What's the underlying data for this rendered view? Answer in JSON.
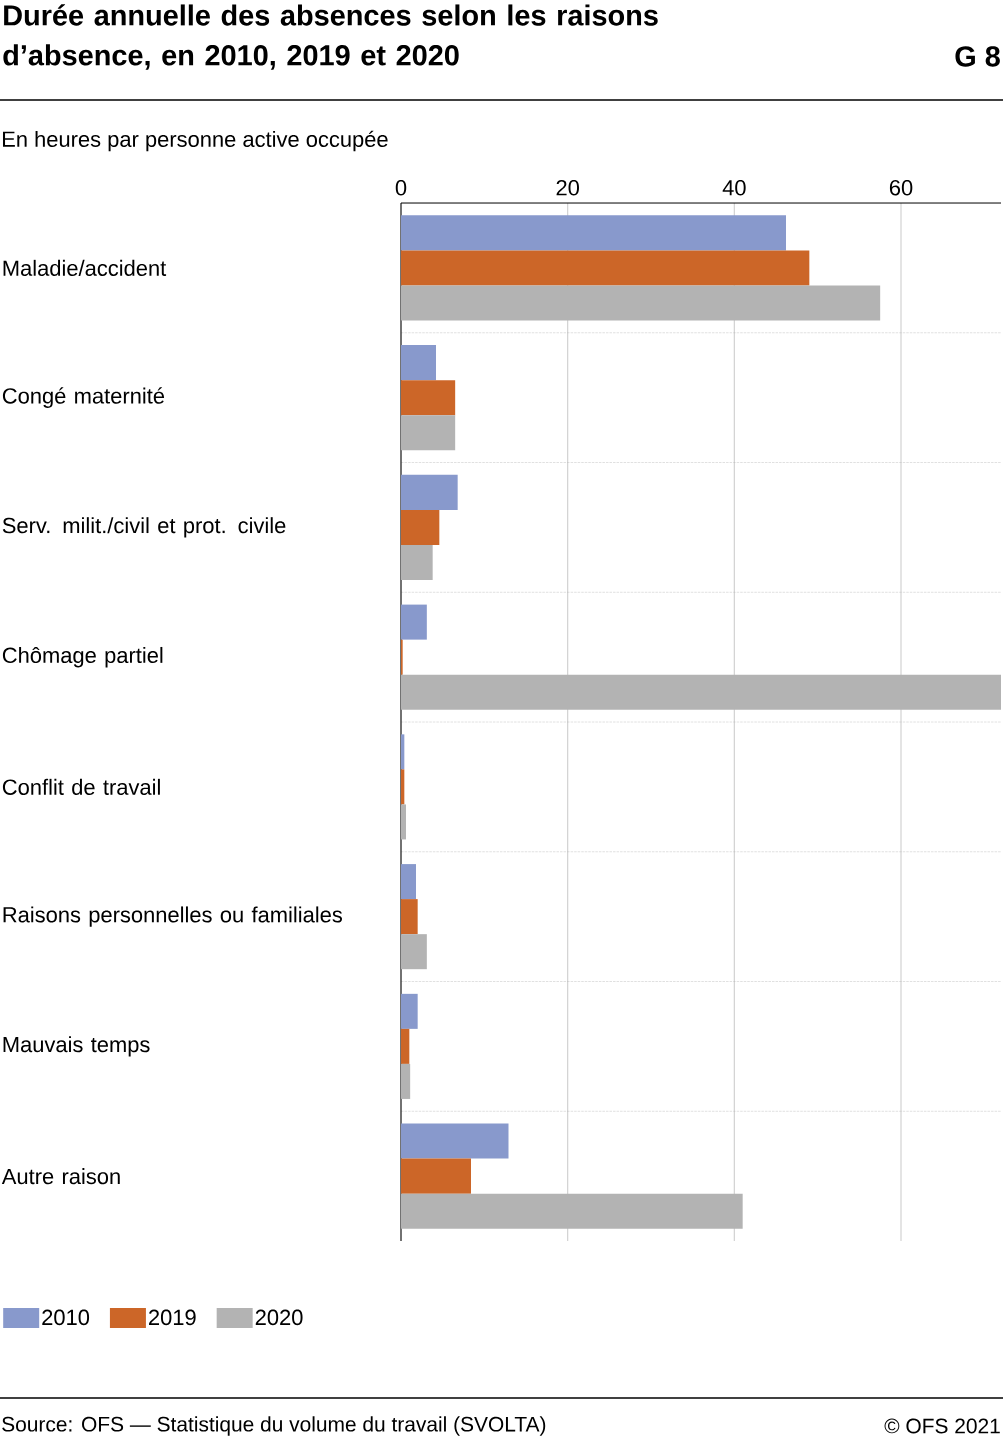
{
  "chart_data": {
    "type": "bar",
    "orientation": "horizontal",
    "title": "Durée annuelle des absences selon les raisons d’absence, en 2010, 2019 et 2020",
    "subtitle": "En heures par personne active occupée",
    "annotations": [
      "G 8",
      "Source: OFS — Statistique du volume du travail (SVOLTA)",
      "© OFS 2021"
    ],
    "categories": [
      "Maladie/accident",
      "Congé maternité",
      "Serv. milit./civil et prot. civile",
      "Chômage partiel",
      "Conflit de travail",
      "Raisons personnelles ou familiales",
      "Mauvais temps",
      "Autre raison"
    ],
    "series": [
      {
        "name": "2010",
        "color": "#8899cc",
        "values": [
          46.2,
          4.2,
          6.8,
          3.1,
          0.4,
          1.8,
          2.0,
          12.9
        ]
      },
      {
        "name": "2019",
        "color": "#cc6628",
        "values": [
          49.0,
          6.5,
          4.6,
          0.2,
          0.4,
          2.0,
          1.0,
          8.4
        ]
      },
      {
        "name": "2020",
        "color": "#b3b3b3",
        "values": [
          57.5,
          6.5,
          3.8,
          72,
          0.6,
          3.1,
          1.1,
          41.0
        ]
      }
    ],
    "xlim": [
      0,
      72
    ],
    "xticks": [
      0,
      20,
      40,
      60
    ],
    "grid": "x",
    "legend": "bottom left"
  }
}
